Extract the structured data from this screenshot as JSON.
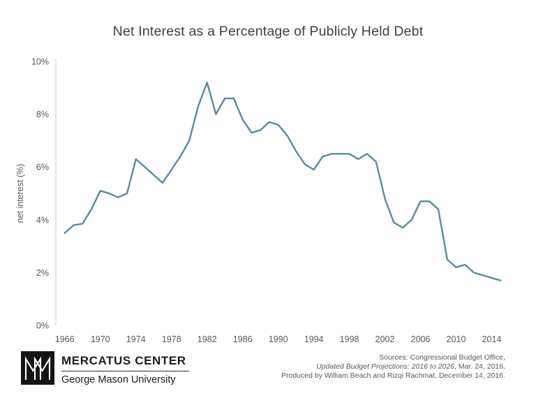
{
  "header": {
    "title": "Net Interest as a Percentage of Publicly Held Debt"
  },
  "chart_data": {
    "type": "line",
    "title": "Net Interest as a Percentage of Publicly Held Debt",
    "xlabel": "",
    "ylabel": "net interest (%)",
    "x": [
      1966,
      1967,
      1968,
      1969,
      1970,
      1971,
      1972,
      1973,
      1974,
      1975,
      1976,
      1977,
      1978,
      1979,
      1980,
      1981,
      1982,
      1983,
      1984,
      1985,
      1986,
      1987,
      1988,
      1989,
      1990,
      1991,
      1992,
      1993,
      1994,
      1995,
      1996,
      1997,
      1998,
      1999,
      2000,
      2001,
      2002,
      2003,
      2004,
      2005,
      2006,
      2007,
      2008,
      2009,
      2010,
      2011,
      2012,
      2013,
      2014,
      2015
    ],
    "values": [
      3.5,
      3.8,
      3.85,
      4.4,
      5.1,
      5.0,
      4.85,
      5.0,
      6.3,
      6.0,
      5.7,
      5.4,
      5.9,
      6.4,
      7.0,
      8.3,
      9.2,
      8.0,
      8.6,
      8.6,
      7.8,
      7.3,
      7.4,
      7.7,
      7.6,
      7.2,
      6.6,
      6.1,
      5.9,
      6.4,
      6.5,
      6.5,
      6.5,
      6.3,
      6.5,
      6.2,
      4.8,
      3.9,
      3.7,
      4.0,
      4.7,
      4.7,
      4.4,
      2.5,
      2.2,
      2.3,
      2.0,
      1.9,
      1.8,
      1.7
    ],
    "x_ticks": [
      1966,
      1970,
      1974,
      1978,
      1982,
      1986,
      1990,
      1994,
      1998,
      2002,
      2006,
      2010,
      2014
    ],
    "y_ticks": [
      0,
      2,
      4,
      6,
      8,
      10
    ],
    "y_tick_suffix": "%",
    "xlim": [
      1965,
      2016
    ],
    "ylim": [
      0,
      10
    ],
    "grid": false,
    "legend": "none",
    "line_color": "#578c9d",
    "axis_color": "#c9cccd"
  },
  "footer": {
    "brand_name": "MERCATUS CENTER",
    "brand_sub": "George Mason University",
    "source_line1": "Sources: Congressional Budget Office,",
    "source_line2_italic": "Updated Budget Projections: 2016 to 2026",
    "source_line2_rest": ", Mar. 24, 2016.",
    "source_line3": "Produced by William Beach and Rizqi Rachmat, December 14, 2016."
  }
}
